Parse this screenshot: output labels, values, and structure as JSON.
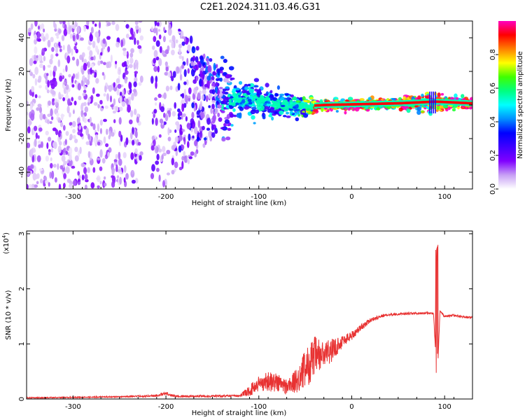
{
  "figure": {
    "title": "C2E1.2024.311.03.46.G31"
  },
  "chart_data": [
    {
      "type": "heatmap",
      "xlabel": "Height of straight line (km)",
      "ylabel": "Frequency (Hz)",
      "xlim": [
        -350,
        130
      ],
      "ylim": [
        -50,
        50
      ],
      "xticks": [
        -300,
        -200,
        -100,
        0,
        100
      ],
      "yticks": [
        -40,
        -20,
        0,
        20,
        40
      ],
      "colorbar": {
        "label": "Normalized spectral amplitude",
        "range": [
          0,
          1
        ],
        "ticks": [
          0.0,
          0.2,
          0.4,
          0.6,
          0.8
        ],
        "colormap": [
          "#ffffff",
          "#c8a0f5",
          "#8000ff",
          "#4000ff",
          "#0000ff",
          "#0090ff",
          "#00ffff",
          "#00ff80",
          "#40ff00",
          "#ffff00",
          "#ff8000",
          "#ff0000",
          "#ff00c0"
        ]
      },
      "description_points": [
        {
          "height_km": -300,
          "center_hz": 0,
          "spread_hz": 50,
          "amplitude": 0.15
        },
        {
          "height_km": -200,
          "center_hz": 3,
          "spread_hz": 50,
          "amplitude": 0.2
        },
        {
          "height_km": -120,
          "center_hz": 4,
          "spread_hz": 8,
          "amplitude": 0.45
        },
        {
          "height_km": -60,
          "center_hz": -1,
          "spread_hz": 5,
          "amplitude": 0.5
        },
        {
          "height_km": -30,
          "center_hz": 0,
          "spread_hz": 2,
          "amplitude": 0.95
        },
        {
          "height_km": 50,
          "center_hz": 1,
          "spread_hz": 2,
          "amplitude": 0.95
        },
        {
          "height_km": 90,
          "center_hz": 2,
          "spread_hz": 4,
          "amplitude": 0.95
        },
        {
          "height_km": 130,
          "center_hz": 1,
          "spread_hz": 2,
          "amplitude": 0.95
        }
      ],
      "gap_km": [
        -226,
        -215
      ]
    },
    {
      "type": "line",
      "xlabel": "Height of straight line (km)",
      "ylabel": "SNR (10 * v/v)",
      "yscale_label": "(x10",
      "yscale_exponent": "4",
      "xlim": [
        -350,
        130
      ],
      "ylim": [
        0,
        3.05
      ],
      "xticks": [
        -300,
        -200,
        -100,
        0,
        100
      ],
      "yticks": [
        0,
        1,
        2,
        3
      ],
      "series": [
        {
          "color": "#e83232",
          "x": [
            -350,
            -300,
            -250,
            -210,
            -200,
            -190,
            -150,
            -120,
            -110,
            -100,
            -90,
            -80,
            -70,
            -60,
            -50,
            -40,
            -30,
            -20,
            -10,
            0,
            10,
            20,
            30,
            40,
            60,
            80,
            88,
            92,
            95,
            100,
            110,
            120,
            130
          ],
          "y": [
            0.02,
            0.03,
            0.04,
            0.06,
            0.1,
            0.05,
            0.05,
            0.06,
            0.15,
            0.28,
            0.32,
            0.3,
            0.22,
            0.32,
            0.55,
            0.75,
            0.8,
            0.9,
            1.05,
            1.15,
            1.3,
            1.43,
            1.5,
            1.53,
            1.55,
            1.56,
            1.55,
            0.3,
            1.6,
            1.5,
            1.52,
            1.49,
            1.48
          ],
          "noise": [
            0.01,
            0.01,
            0.01,
            0.02,
            0.03,
            0.02,
            0.02,
            0.02,
            0.1,
            0.15,
            0.18,
            0.18,
            0.15,
            0.22,
            0.35,
            0.4,
            0.25,
            0.2,
            0.12,
            0.08,
            0.06,
            0.04,
            0.03,
            0.02,
            0.02,
            0.02,
            0.02,
            0.02,
            0.02,
            0.02,
            0.02,
            0.02,
            0.02
          ]
        }
      ]
    }
  ]
}
